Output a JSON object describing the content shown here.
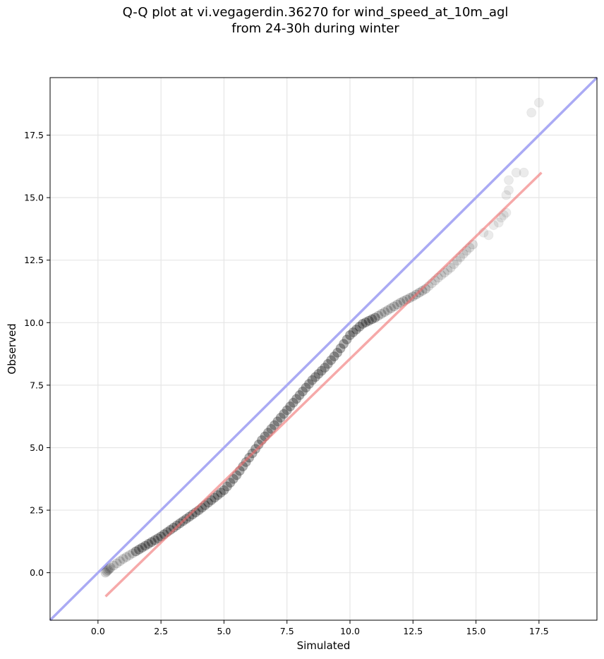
{
  "chart_data": {
    "type": "scatter",
    "title_lines": [
      "Q-Q plot at vi.vegagerdin.36270 for wind_speed_at_10m_agl",
      "from 24-30h during winter"
    ],
    "xlabel": "Simulated",
    "ylabel": "Observed",
    "xlim": [
      -1.9,
      19.8
    ],
    "ylim": [
      -1.9,
      19.8
    ],
    "x_ticks": [
      0.0,
      2.5,
      5.0,
      7.5,
      10.0,
      12.5,
      15.0,
      17.5
    ],
    "y_ticks": [
      0.0,
      2.5,
      5.0,
      7.5,
      10.0,
      12.5,
      15.0,
      17.5
    ],
    "x_tick_labels": [
      "0.0",
      "2.5",
      "5.0",
      "7.5",
      "10.0",
      "12.5",
      "15.0",
      "17.5"
    ],
    "y_tick_labels": [
      "0.0",
      "2.5",
      "5.0",
      "7.5",
      "10.0",
      "12.5",
      "15.0",
      "17.5"
    ],
    "grid": true,
    "colors": {
      "identity_line": "#aaaaf4",
      "fit_line": "#f4a4a4",
      "points": "#000000",
      "axis": "#000000",
      "grid": "#e6e6e6"
    },
    "identity_line": {
      "x": [
        -1.9,
        19.8
      ],
      "y": [
        -1.9,
        19.8
      ]
    },
    "fit_line": {
      "x": [
        0.3,
        17.6
      ],
      "y": [
        -0.95,
        16.0
      ]
    },
    "quantile_curve": {
      "x": [
        0.3,
        0.5,
        1.0,
        1.5,
        2.0,
        2.5,
        3.0,
        3.5,
        4.0,
        4.5,
        5.0,
        5.5,
        6.0,
        6.5,
        7.0,
        7.5,
        8.0,
        8.5,
        9.0,
        9.5,
        10.0,
        10.5,
        11.0,
        11.5,
        12.0,
        12.5,
        13.0,
        13.5,
        14.0,
        14.5,
        15.0
      ],
      "y": [
        0.0,
        0.2,
        0.55,
        0.85,
        1.15,
        1.45,
        1.8,
        2.15,
        2.5,
        2.9,
        3.3,
        3.9,
        4.6,
        5.3,
        5.9,
        6.5,
        7.1,
        7.7,
        8.2,
        8.8,
        9.5,
        9.95,
        10.2,
        10.5,
        10.8,
        11.05,
        11.35,
        11.8,
        12.2,
        12.75,
        13.25
      ]
    },
    "points_per_segment": 4,
    "tail_points": {
      "x": [
        15.3,
        15.5,
        15.7,
        15.9,
        16.0,
        16.1,
        16.2,
        16.2,
        16.3,
        16.3,
        16.6,
        16.9,
        17.2,
        17.5
      ],
      "y": [
        13.6,
        13.5,
        13.9,
        14.0,
        14.2,
        14.3,
        14.4,
        15.1,
        15.3,
        15.7,
        16.0,
        16.0,
        18.4,
        18.8
      ]
    }
  }
}
